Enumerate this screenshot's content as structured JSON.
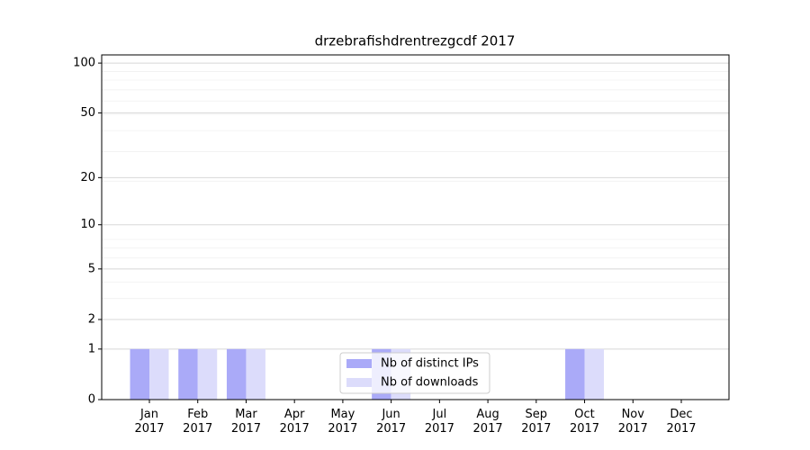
{
  "chart_data": {
    "type": "bar",
    "title": "drzebrafishdrentrezgcdf 2017",
    "categories": [
      "Jan\n2017",
      "Feb\n2017",
      "Mar\n2017",
      "Apr\n2017",
      "May\n2017",
      "Jun\n2017",
      "Jul\n2017",
      "Aug\n2017",
      "Sep\n2017",
      "Oct\n2017",
      "Nov\n2017",
      "Dec\n2017"
    ],
    "series": [
      {
        "name": "Nb of distinct IPs",
        "color": "#aaaaf8",
        "values": [
          1,
          1,
          1,
          0,
          0,
          1,
          0,
          0,
          0,
          1,
          0,
          0
        ]
      },
      {
        "name": "Nb of downloads",
        "color": "#dcdcfb",
        "values": [
          1,
          1,
          1,
          0,
          0,
          1,
          0,
          0,
          0,
          1,
          0,
          0
        ]
      }
    ],
    "yscale": "log1p",
    "ylim": [
      0,
      112
    ],
    "yticks": [
      0,
      1,
      2,
      5,
      10,
      20,
      50,
      100
    ],
    "grid": true,
    "legend": "lower center"
  }
}
